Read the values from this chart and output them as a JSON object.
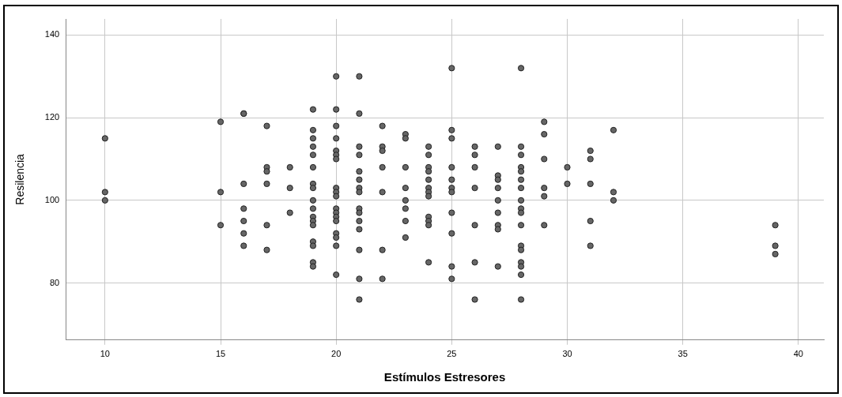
{
  "chart_data": {
    "type": "scatter",
    "xlabel": "Estímulos Estresores",
    "ylabel": "Resilencia",
    "xlim": [
      8.3,
      41.1
    ],
    "ylim": [
      66.2,
      143.9
    ],
    "xticks": [
      10,
      15,
      20,
      25,
      30,
      35,
      40
    ],
    "yticks": [
      80,
      100,
      120,
      140
    ],
    "grid": true,
    "marker": "circle",
    "series": [
      {
        "color": "#666666",
        "x": [
          10,
          10,
          10,
          15,
          15,
          15,
          16,
          16,
          16,
          16,
          16,
          16,
          16,
          17,
          17,
          17,
          17,
          17,
          17,
          18,
          18,
          18,
          19,
          19,
          19,
          19,
          19,
          19,
          19,
          19,
          19,
          19,
          19,
          19,
          19,
          19,
          19,
          19,
          19,
          20,
          20,
          20,
          20,
          20,
          20,
          20,
          20,
          20,
          20,
          20,
          20,
          20,
          20,
          20,
          20,
          20,
          20,
          21,
          21,
          21,
          21,
          21,
          21,
          21,
          21,
          21,
          21,
          21,
          21,
          21,
          21,
          21,
          22,
          22,
          22,
          22,
          22,
          22,
          22,
          23,
          23,
          23,
          23,
          23,
          23,
          23,
          23,
          24,
          24,
          24,
          24,
          24,
          24,
          24,
          24,
          24,
          24,
          24,
          24,
          25,
          25,
          25,
          25,
          25,
          25,
          25,
          25,
          25,
          25,
          25,
          26,
          26,
          26,
          26,
          26,
          26,
          26,
          27,
          27,
          27,
          27,
          27,
          27,
          27,
          27,
          27,
          28,
          28,
          28,
          28,
          28,
          28,
          28,
          28,
          28,
          28,
          28,
          28,
          28,
          28,
          28,
          28,
          28,
          29,
          29,
          29,
          29,
          29,
          29,
          30,
          30,
          31,
          31,
          31,
          31,
          31,
          32,
          32,
          32,
          39,
          39,
          39
        ],
        "values": [
          115,
          102,
          100,
          119,
          102,
          94,
          121,
          121,
          104,
          98,
          95,
          92,
          89,
          118,
          108,
          107,
          104,
          94,
          88,
          108,
          103,
          97,
          122,
          117,
          115,
          113,
          111,
          108,
          104,
          103,
          100,
          98,
          96,
          95,
          94,
          90,
          89,
          85,
          84,
          130,
          122,
          118,
          115,
          112,
          111,
          110,
          103,
          102,
          101,
          98,
          97,
          96,
          95,
          92,
          91,
          89,
          82,
          130,
          121,
          113,
          111,
          107,
          105,
          103,
          102,
          98,
          97,
          95,
          93,
          88,
          81,
          76,
          118,
          113,
          112,
          108,
          102,
          88,
          81,
          116,
          115,
          108,
          103,
          100,
          98,
          95,
          91,
          113,
          111,
          108,
          107,
          105,
          103,
          102,
          101,
          96,
          95,
          94,
          85,
          132,
          117,
          115,
          108,
          105,
          103,
          102,
          97,
          92,
          84,
          81,
          113,
          111,
          108,
          103,
          94,
          85,
          76,
          113,
          106,
          105,
          103,
          100,
          97,
          94,
          93,
          84,
          132,
          113,
          111,
          108,
          107,
          105,
          103,
          100,
          98,
          97,
          94,
          89,
          88,
          85,
          84,
          82,
          76,
          119,
          116,
          110,
          103,
          101,
          94,
          108,
          104,
          112,
          110,
          104,
          95,
          89,
          117,
          102,
          100,
          94,
          89,
          87
        ]
      }
    ]
  }
}
